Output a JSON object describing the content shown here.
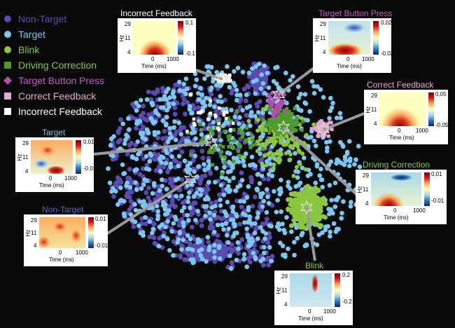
{
  "colors": {
    "non_target": "#5b4bb0",
    "target": "#7cc6ef",
    "blink": "#8cc63f",
    "driving_correction": "#4e9a2d",
    "target_button_press": "#b04fb0",
    "correct_feedback": "#e6a8cf",
    "incorrect_feedback": "#ffffff"
  },
  "legend": [
    {
      "label": "Non-Target",
      "shape": "circle",
      "color": "#5b4bb0"
    },
    {
      "label": "Target",
      "shape": "circle",
      "color": "#7cc6ef"
    },
    {
      "label": "Blink",
      "shape": "circle",
      "color": "#8cc63f"
    },
    {
      "label": "Driving Correction",
      "shape": "square",
      "color": "#4e9a2d"
    },
    {
      "label": "Target Button Press",
      "shape": "diamond",
      "color": "#b04fb0"
    },
    {
      "label": "Correct Feedback",
      "shape": "square",
      "color": "#e6a8cf"
    },
    {
      "label": "Incorrect Feedback",
      "shape": "square",
      "color": "#ffffff"
    }
  ],
  "insets": {
    "incorrect_feedback": {
      "title": "Incorrect Feedback",
      "title_color": "#ffffff",
      "yticks": [
        "29",
        "11",
        "4"
      ],
      "ylabel": "Hz",
      "xticks": [
        "0",
        "1000"
      ],
      "xlabel": "Time (ms)",
      "cbar": [
        "0.1",
        "-0.1"
      ]
    },
    "target_button_press": {
      "title": "Target Button Press",
      "title_color": "#c45cc4",
      "yticks": [
        "29",
        "11",
        "4"
      ],
      "ylabel": "Hz",
      "xticks": [
        "0",
        "1000"
      ],
      "xlabel": "Time (ms)",
      "cbar": [
        "0.02",
        "-0.02"
      ]
    },
    "correct_feedback": {
      "title": "Correct Feedback",
      "title_color": "#e6a8cf",
      "yticks": [
        "29",
        "11",
        "4"
      ],
      "ylabel": "Hz",
      "xticks": [
        "0",
        "1000"
      ],
      "xlabel": "Time (ms)",
      "cbar": [
        "0.05",
        "-0.05"
      ]
    },
    "target": {
      "title": "Target",
      "title_color": "#7cc6ef",
      "yticks": [
        "29",
        "11",
        "4"
      ],
      "ylabel": "Hz",
      "xticks": [
        "0",
        "1000"
      ],
      "xlabel": "Time (ms)",
      "cbar": [
        "0.01",
        "-0.01"
      ]
    },
    "driving_correction": {
      "title": "Driving Correction",
      "title_color": "#8cc63f",
      "yticks": [
        "29",
        "11",
        "4"
      ],
      "ylabel": "Hz",
      "xticks": [
        "0",
        "1000"
      ],
      "xlabel": "Time (ms)",
      "cbar": [
        "0.01",
        "-0.01"
      ]
    },
    "non_target": {
      "title": "Non-Target",
      "title_color": "#6a5acd",
      "yticks": [
        "29",
        "11",
        "4"
      ],
      "ylabel": "Hz",
      "xticks": [
        "0",
        "1000"
      ],
      "xlabel": "Time (ms)",
      "cbar": [
        "0.01",
        "-0.01"
      ]
    },
    "blink": {
      "title": "Blink",
      "title_color": "#8cc63f",
      "yticks": [
        "29",
        "11",
        "4"
      ],
      "ylabel": "Hz",
      "xticks": [
        "0",
        "1000"
      ],
      "xlabel": "Time (ms)",
      "cbar": [
        "0.2",
        "-0.2"
      ]
    }
  }
}
